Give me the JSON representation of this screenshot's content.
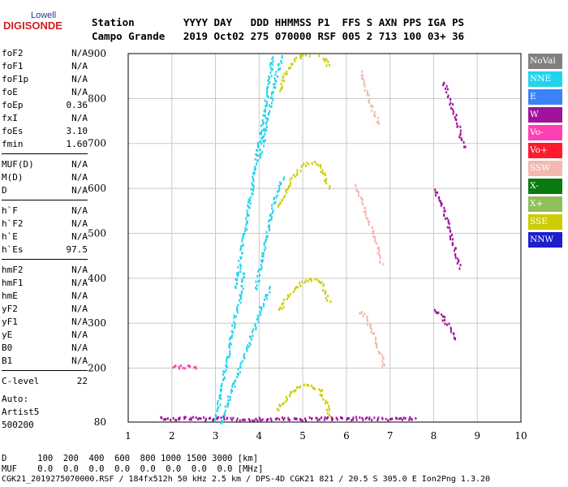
{
  "logo": {
    "top": "Lowell",
    "main": "DIGISONDE"
  },
  "header": {
    "row1": "Station        YYYY DAY   DDD HHMMSS P1  FFS S AXN PPS IGA PS",
    "row2": "Campo Grande   2019 Oct02 275 070000 RSF 005 2 713 100 03+ 36"
  },
  "params": [
    [
      {
        "name": "foF2",
        "value": "N/A"
      },
      {
        "name": "foF1",
        "value": "N/A"
      },
      {
        "name": "foF1p",
        "value": "N/A"
      },
      {
        "name": "foE",
        "value": "N/A"
      },
      {
        "name": "foEp",
        "value": "0.36"
      },
      {
        "name": "fxI",
        "value": "N/A"
      },
      {
        "name": "foEs",
        "value": "3.10"
      },
      {
        "name": "fmin",
        "value": "1.60"
      }
    ],
    [
      {
        "name": "MUF(D)",
        "value": "N/A"
      },
      {
        "name": "M(D)",
        "value": "N/A"
      },
      {
        "name": "D",
        "value": "N/A"
      }
    ],
    [
      {
        "name": "h`F",
        "value": "N/A"
      },
      {
        "name": "h`F2",
        "value": "N/A"
      },
      {
        "name": "h`E",
        "value": "N/A"
      },
      {
        "name": "h`Es",
        "value": "97.5"
      }
    ],
    [
      {
        "name": "hmF2",
        "value": "N/A"
      },
      {
        "name": "hmF1",
        "value": "N/A"
      },
      {
        "name": "hmE",
        "value": "N/A"
      },
      {
        "name": "yF2",
        "value": "N/A"
      },
      {
        "name": "yF1",
        "value": "N/A"
      },
      {
        "name": "yE",
        "value": "N/A"
      },
      {
        "name": "B0",
        "value": "N/A"
      },
      {
        "name": "B1",
        "value": "N/A"
      }
    ],
    [
      {
        "name": "C-level",
        "value": "22"
      }
    ]
  ],
  "auto": {
    "line1": "Auto:",
    "line2": "Artist5",
    "line3": "500200"
  },
  "legend": [
    {
      "label": "NoVal",
      "color": "#808080"
    },
    {
      "label": "NNE",
      "color": "#22d3ee"
    },
    {
      "label": "E",
      "color": "#3b82f6"
    },
    {
      "label": "W",
      "color": "#a0139b"
    },
    {
      "label": "Vo-",
      "color": "#ff3fb5"
    },
    {
      "label": "Vo+",
      "color": "#ff1a2e"
    },
    {
      "label": "SSW",
      "color": "#f4b8b0"
    },
    {
      "label": "X-",
      "color": "#0b7a12"
    },
    {
      "label": "X+",
      "color": "#8fbf5a"
    },
    {
      "label": "SSE",
      "color": "#cccc00"
    },
    {
      "label": "NNW",
      "color": "#1e1ecc"
    }
  ],
  "footer": {
    "d_row": "D      100  200  400  600  800 1000 1500 3000 [km]",
    "muf_row": "MUF    0.0  0.0  0.0  0.0  0.0  0.0  0.0  0.0 [MHz]",
    "bottom": "CGK21_2019275070000.RSF / 184fx512h 50 kHz 2.5 km / DPS-4D CGK21 821 / 20.5 S 305.0 E Ion2Png 1.3.20"
  },
  "chart_data": {
    "type": "scatter",
    "xlim": [
      1,
      10
    ],
    "ylim": [
      80,
      900
    ],
    "x_ticks": [
      1,
      2,
      3,
      4,
      5,
      6,
      7,
      8,
      9,
      10
    ],
    "y_ticks": [
      200,
      300,
      400,
      500,
      600,
      700,
      800,
      900
    ],
    "y_tick_extra": "80",
    "grid": true,
    "traces": [
      {
        "label": "o-trace 1",
        "color": "#22d3ee",
        "points": [
          [
            2.95,
            80
          ],
          [
            3.05,
            120
          ],
          [
            3.15,
            170
          ],
          [
            3.25,
            220
          ],
          [
            3.35,
            270
          ],
          [
            3.45,
            320
          ],
          [
            3.55,
            350
          ],
          [
            3.6,
            380
          ],
          [
            3.65,
            420
          ]
        ]
      },
      {
        "label": "o-trace 1 lower edge",
        "color": "#22d3ee",
        "points": [
          [
            3.1,
            80
          ],
          [
            3.2,
            110
          ],
          [
            3.35,
            150
          ],
          [
            3.5,
            190
          ],
          [
            3.65,
            230
          ],
          [
            3.8,
            270
          ],
          [
            3.95,
            310
          ],
          [
            4.05,
            340
          ],
          [
            4.15,
            360
          ],
          [
            4.25,
            385
          ]
        ]
      },
      {
        "label": "o-trace 2",
        "color": "#22d3ee",
        "points": [
          [
            3.45,
            380
          ],
          [
            3.55,
            440
          ],
          [
            3.65,
            500
          ],
          [
            3.75,
            560
          ],
          [
            3.85,
            620
          ],
          [
            3.95,
            680
          ],
          [
            4.05,
            740
          ],
          [
            4.15,
            800
          ],
          [
            4.25,
            860
          ],
          [
            4.3,
            900
          ]
        ]
      },
      {
        "label": "o-trace 2 lower edge",
        "color": "#22d3ee",
        "points": [
          [
            3.9,
            380
          ],
          [
            4.05,
            440
          ],
          [
            4.15,
            490
          ],
          [
            4.25,
            540
          ],
          [
            4.35,
            580
          ],
          [
            4.45,
            610
          ],
          [
            4.55,
            630
          ]
        ]
      },
      {
        "label": "o-trace 3",
        "color": "#22d3ee",
        "points": [
          [
            4.0,
            670
          ],
          [
            4.15,
            740
          ],
          [
            4.25,
            790
          ],
          [
            4.35,
            840
          ],
          [
            4.45,
            880
          ],
          [
            4.55,
            900
          ]
        ]
      },
      {
        "label": "F2 lobe 1",
        "color": "#cccc00",
        "points": [
          [
            4.4,
            110
          ],
          [
            4.6,
            135
          ],
          [
            4.8,
            155
          ],
          [
            5.0,
            162
          ],
          [
            5.2,
            162
          ],
          [
            5.4,
            150
          ],
          [
            5.55,
            120
          ],
          [
            5.6,
            90
          ]
        ]
      },
      {
        "label": "F2 lobe 2",
        "color": "#cccc00",
        "points": [
          [
            4.45,
            330
          ],
          [
            4.6,
            355
          ],
          [
            4.8,
            380
          ],
          [
            5.0,
            395
          ],
          [
            5.2,
            400
          ],
          [
            5.4,
            395
          ],
          [
            5.5,
            370
          ],
          [
            5.6,
            345
          ]
        ]
      },
      {
        "label": "F2 lobe 3",
        "color": "#cccc00",
        "points": [
          [
            4.45,
            560
          ],
          [
            4.6,
            600
          ],
          [
            4.8,
            630
          ],
          [
            5.0,
            655
          ],
          [
            5.2,
            660
          ],
          [
            5.4,
            650
          ],
          [
            5.5,
            625
          ],
          [
            5.6,
            600
          ]
        ]
      },
      {
        "label": "F2 lobe 4",
        "color": "#cccc00",
        "points": [
          [
            4.45,
            820
          ],
          [
            4.6,
            860
          ],
          [
            4.8,
            885
          ],
          [
            5.0,
            900
          ],
          [
            5.3,
            900
          ],
          [
            5.5,
            890
          ],
          [
            5.6,
            870
          ]
        ]
      },
      {
        "label": "x-trace 1",
        "color": "#f4b8b0",
        "points": [
          [
            6.3,
            330
          ],
          [
            6.45,
            310
          ],
          [
            6.6,
            280
          ],
          [
            6.7,
            250
          ],
          [
            6.8,
            220
          ],
          [
            6.85,
            200
          ]
        ]
      },
      {
        "label": "x-trace 2",
        "color": "#f4b8b0",
        "points": [
          [
            6.2,
            610
          ],
          [
            6.35,
            570
          ],
          [
            6.5,
            530
          ],
          [
            6.6,
            500
          ],
          [
            6.7,
            470
          ],
          [
            6.8,
            430
          ]
        ]
      },
      {
        "label": "x-trace 3",
        "color": "#f4b8b0",
        "points": [
          [
            6.3,
            860
          ],
          [
            6.45,
            820
          ],
          [
            6.55,
            790
          ],
          [
            6.65,
            760
          ],
          [
            6.75,
            740
          ]
        ]
      },
      {
        "label": "w-trace 1",
        "color": "#a0139b",
        "points": [
          [
            8.0,
            330
          ],
          [
            8.15,
            320
          ],
          [
            8.3,
            300
          ],
          [
            8.4,
            280
          ],
          [
            8.5,
            260
          ]
        ]
      },
      {
        "label": "w-trace 2",
        "color": "#a0139b",
        "points": [
          [
            8.0,
            600
          ],
          [
            8.15,
            570
          ],
          [
            8.3,
            530
          ],
          [
            8.4,
            490
          ],
          [
            8.5,
            450
          ],
          [
            8.6,
            420
          ]
        ]
      },
      {
        "label": "w-trace 3",
        "color": "#a0139b",
        "points": [
          [
            8.2,
            840
          ],
          [
            8.35,
            800
          ],
          [
            8.5,
            760
          ],
          [
            8.6,
            720
          ],
          [
            8.7,
            690
          ]
        ]
      },
      {
        "label": "Es trace",
        "color": "#ff3fb5",
        "points": [
          [
            2.0,
            205
          ],
          [
            2.3,
            205
          ],
          [
            2.6,
            205
          ]
        ]
      },
      {
        "label": "near-ground cluster",
        "color": "#a0139b",
        "points": [
          [
            1.7,
            90
          ],
          [
            2.2,
            90
          ],
          [
            2.7,
            90
          ],
          [
            3.2,
            90
          ],
          [
            3.6,
            88
          ],
          [
            6.2,
            90
          ],
          [
            7.0,
            90
          ],
          [
            7.6,
            90
          ]
        ]
      }
    ]
  }
}
